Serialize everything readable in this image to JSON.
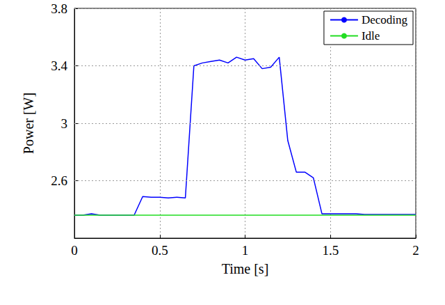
{
  "chart_data": {
    "type": "line",
    "x_label": "Time [s]",
    "y_label": "Power [W]",
    "x": [
      0,
      0.05,
      0.1,
      0.15,
      0.2,
      0.25,
      0.3,
      0.35,
      0.4,
      0.45,
      0.5,
      0.55,
      0.6,
      0.65,
      0.7,
      0.75,
      0.8,
      0.85,
      0.9,
      0.95,
      1.0,
      1.05,
      1.1,
      1.15,
      1.2,
      1.25,
      1.3,
      1.35,
      1.4,
      1.45,
      1.5,
      1.55,
      1.6,
      1.65,
      1.7,
      1.75,
      1.8,
      1.85,
      1.9,
      1.95,
      2.0
    ],
    "series": [
      {
        "name": "Decoding",
        "color": "#0000ff",
        "values": [
          2.36,
          2.36,
          2.37,
          2.36,
          2.36,
          2.36,
          2.36,
          2.36,
          2.49,
          2.485,
          2.485,
          2.48,
          2.485,
          2.48,
          3.4,
          3.42,
          3.43,
          3.44,
          3.42,
          3.46,
          3.44,
          3.45,
          3.38,
          3.39,
          3.46,
          2.88,
          2.66,
          2.66,
          2.62,
          2.37,
          2.37,
          2.37,
          2.37,
          2.37,
          2.365,
          2.365,
          2.365,
          2.365,
          2.365,
          2.365,
          2.365
        ]
      },
      {
        "name": "Idle",
        "color": "#22dd22",
        "values": [
          2.36,
          2.36,
          2.36,
          2.36,
          2.36,
          2.36,
          2.36,
          2.36,
          2.36,
          2.36,
          2.36,
          2.36,
          2.36,
          2.36,
          2.36,
          2.36,
          2.36,
          2.36,
          2.36,
          2.36,
          2.36,
          2.36,
          2.36,
          2.36,
          2.36,
          2.36,
          2.36,
          2.36,
          2.36,
          2.36,
          2.36,
          2.36,
          2.36,
          2.36,
          2.36,
          2.36,
          2.36,
          2.36,
          2.36,
          2.36,
          2.36
        ]
      }
    ],
    "xlim": [
      0,
      2
    ],
    "xticks": [
      0,
      0.5,
      1,
      1.5,
      2
    ],
    "ylim": [
      2.2,
      3.8
    ],
    "yticks": [
      2.6,
      3,
      3.4,
      3.8
    ],
    "grid": true,
    "legend": "upper right"
  }
}
